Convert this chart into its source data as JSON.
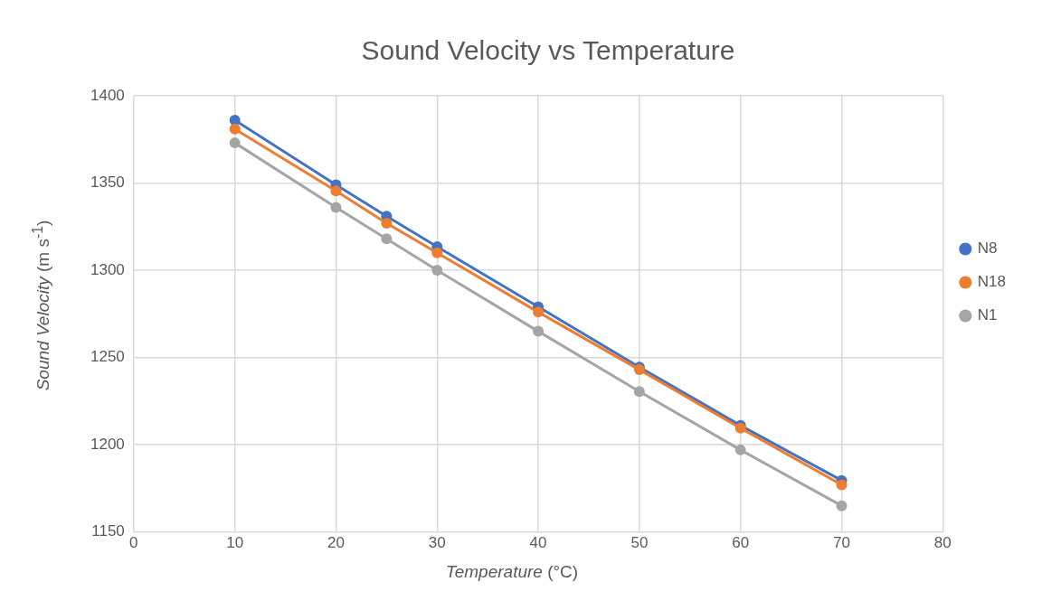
{
  "chart_data": {
    "type": "line",
    "title": "Sound Velocity vs Temperature",
    "xlabel": "Temperature (°C)",
    "ylabel": "Sound Velocity (m s$^{-1}$)",
    "x": [
      10,
      20,
      25,
      30,
      40,
      50,
      60,
      70
    ],
    "series": [
      {
        "name": "N8",
        "color": "#4472c4",
        "values": [
          1386,
          1349,
          1331,
          1313.5,
          1279,
          1244.5,
          1211,
          1179.5
        ]
      },
      {
        "name": "N18",
        "color": "#ed7d31",
        "values": [
          1381,
          1345.5,
          1327,
          1310,
          1276,
          1243,
          1209.5,
          1177
        ]
      },
      {
        "name": "N1",
        "color": "#a5a5a5",
        "values": [
          1373,
          1336,
          1318,
          1300,
          1265,
          1230.5,
          1197,
          1165
        ]
      }
    ],
    "xlim": [
      0,
      80
    ],
    "xticks": [
      0,
      10,
      20,
      30,
      40,
      50,
      60,
      70,
      80
    ],
    "ylim": [
      1150,
      1400
    ],
    "yticks": [
      1150,
      1200,
      1250,
      1300,
      1350,
      1400
    ],
    "grid": true,
    "legend": "right",
    "marker": "circle",
    "line_style": "solid"
  }
}
